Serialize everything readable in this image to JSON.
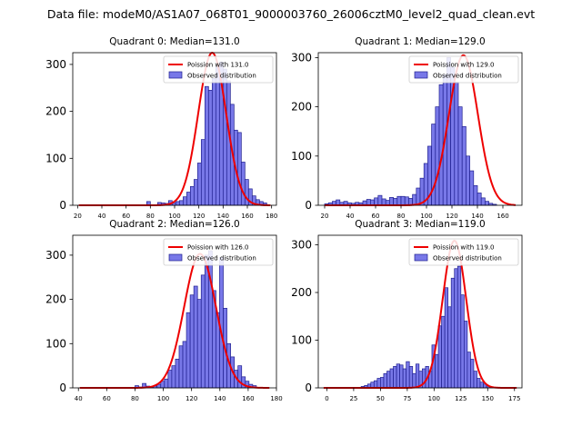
{
  "suptitle": "Data file: modeM0/AS1A07_068T01_9000003760_26006cztM0_level2_quad_clean.evt",
  "legend_labels": {
    "fit": "Poission with {m}",
    "hist": "Observed distribution"
  },
  "colors": {
    "fit": "#ee0000",
    "bar_fill": "#7878e8",
    "bar_edge": "#1f1f8f",
    "axis": "#000000"
  },
  "chart_data": [
    {
      "type": "bar",
      "title": "Quadrant 0: Median=131.0",
      "median": 131.0,
      "fit_label": "131.0",
      "xlim": [
        16,
        184
      ],
      "ylim": [
        0,
        325
      ],
      "xticks": [
        20,
        40,
        60,
        80,
        100,
        120,
        140,
        160,
        180
      ],
      "yticks": [
        0,
        100,
        200,
        300
      ],
      "bin_start": 77,
      "bin_width": 3,
      "counts": [
        8,
        0,
        0,
        6,
        5,
        4,
        10,
        5,
        8,
        10,
        18,
        28,
        40,
        55,
        90,
        140,
        253,
        245,
        270,
        295,
        305,
        290,
        265,
        215,
        160,
        155,
        92,
        55,
        35,
        20,
        12,
        8,
        5
      ]
    },
    {
      "type": "bar",
      "title": "Quadrant 1: Median=129.0",
      "median": 129.0,
      "fit_label": "129.0",
      "xlim": [
        15,
        175
      ],
      "ylim": [
        0,
        310
      ],
      "xticks": [
        20,
        40,
        60,
        80,
        100,
        120,
        140,
        160
      ],
      "yticks": [
        0,
        100,
        200,
        300
      ],
      "bin_start": 20,
      "bin_width": 3,
      "counts": [
        3,
        5,
        8,
        11,
        6,
        8,
        5,
        4,
        6,
        5,
        9,
        12,
        11,
        15,
        20,
        13,
        10,
        16,
        14,
        18,
        18,
        17,
        14,
        22,
        35,
        55,
        85,
        120,
        165,
        200,
        245,
        265,
        300,
        280,
        250,
        200,
        160,
        100,
        70,
        40,
        25,
        15,
        8,
        4,
        2
      ]
    },
    {
      "type": "bar",
      "title": "Quadrant 2: Median=126.0",
      "median": 126.0,
      "fit_label": "126.0",
      "xlim": [
        36,
        180
      ],
      "ylim": [
        0,
        345
      ],
      "xticks": [
        40,
        60,
        80,
        100,
        120,
        140,
        160,
        180
      ],
      "yticks": [
        0,
        100,
        200,
        300
      ],
      "bin_start": 80,
      "bin_width": 2.6,
      "counts": [
        5,
        2,
        10,
        4,
        2,
        4,
        8,
        15,
        20,
        40,
        50,
        65,
        95,
        105,
        170,
        210,
        230,
        200,
        255,
        300,
        310,
        220,
        170,
        295,
        180,
        100,
        70,
        40,
        50,
        25,
        15,
        8,
        5
      ]
    },
    {
      "type": "bar",
      "title": "Quadrant 3: Median=119.0",
      "median": 119.0,
      "fit_label": "119.0",
      "xlim": [
        -8,
        182
      ],
      "ylim": [
        0,
        320
      ],
      "xticks": [
        0,
        25,
        50,
        75,
        100,
        125,
        150,
        175
      ],
      "yticks": [
        0,
        100,
        200,
        300
      ],
      "bin_start": 32,
      "bin_width": 3,
      "counts": [
        3,
        5,
        8,
        12,
        15,
        20,
        22,
        30,
        35,
        40,
        45,
        50,
        48,
        40,
        55,
        45,
        30,
        50,
        35,
        40,
        45,
        35,
        90,
        70,
        130,
        150,
        210,
        170,
        230,
        250,
        255,
        195,
        140,
        75,
        60,
        35,
        20,
        12,
        8,
        4,
        2
      ]
    }
  ]
}
